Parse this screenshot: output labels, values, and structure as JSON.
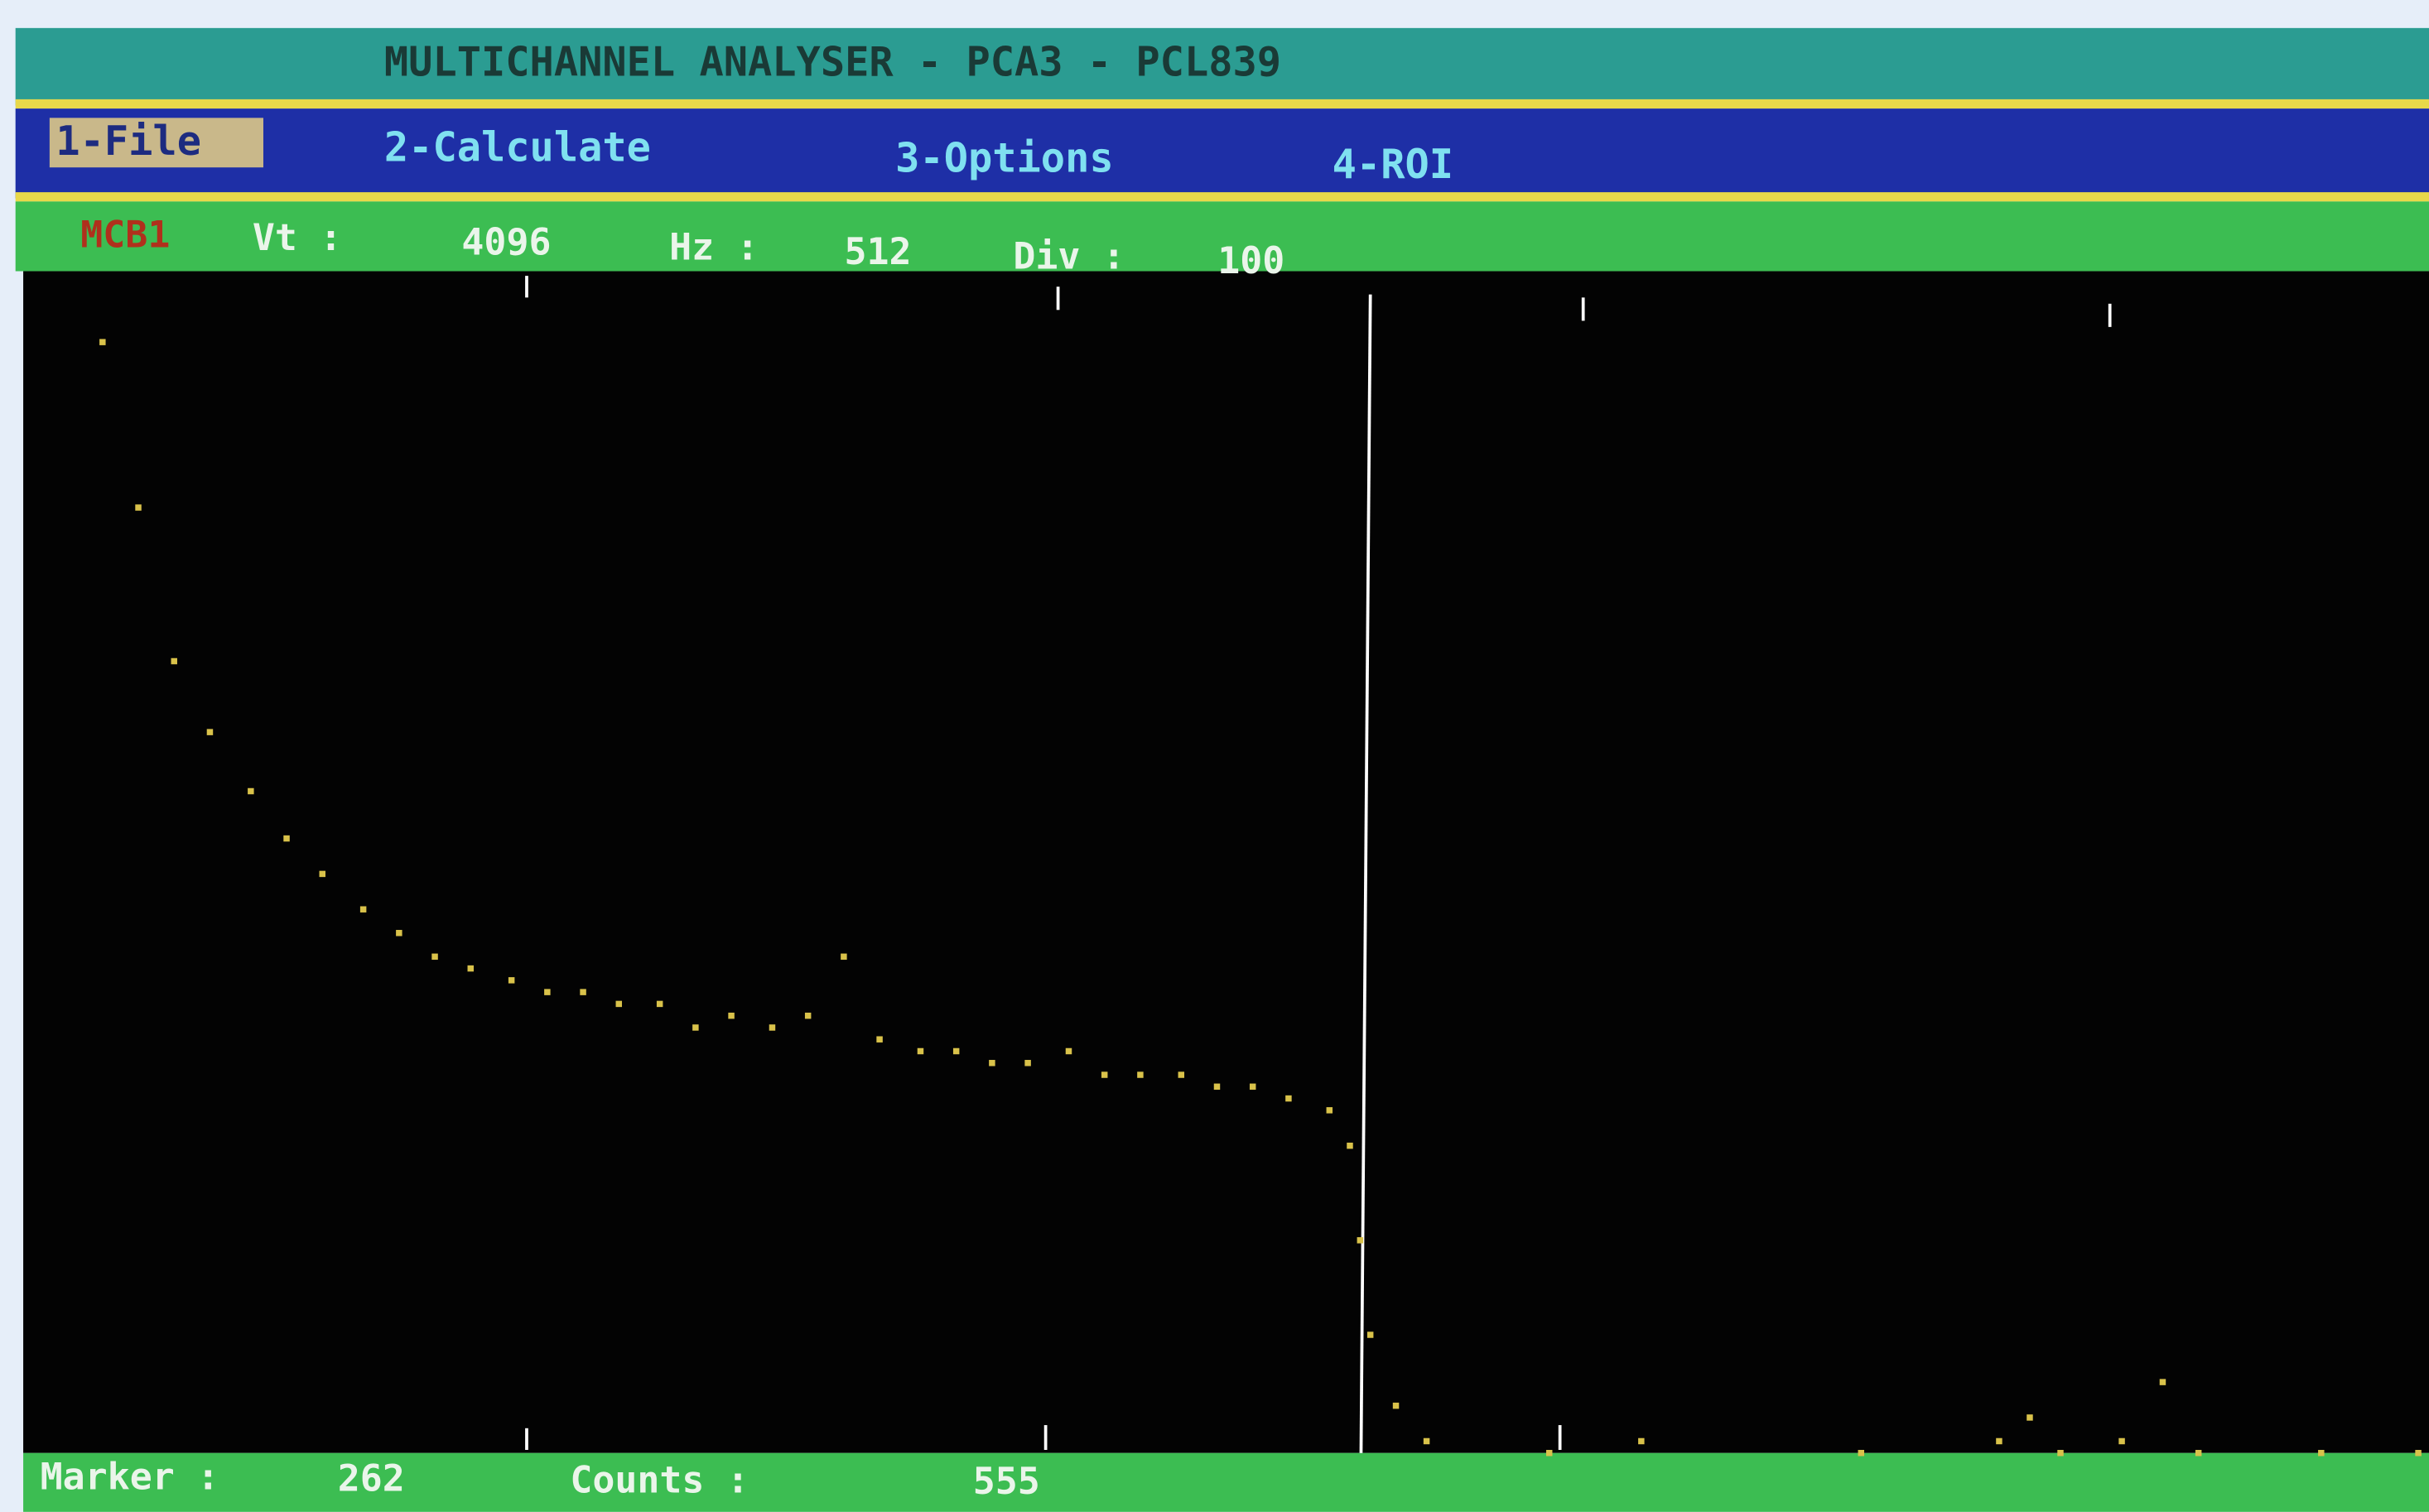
{
  "title": "MULTICHANNEL ANALYSER - PCA3 - PCL839",
  "menu": [
    "1-File",
    "2-Calculate",
    "3-Options",
    "4-ROI"
  ],
  "status": {
    "device": "MCB1",
    "vt_label": "Vt :",
    "vt": 4096,
    "hz_label": "Hz :",
    "hz": 512,
    "div_label": "Div :",
    "div": 100
  },
  "footer": {
    "marker_label": "Marker :",
    "marker": 262,
    "counts_label": "Counts :",
    "counts": 555
  },
  "spectrum": {
    "channels": [
      14,
      21,
      28,
      35,
      43,
      50,
      57,
      65,
      72,
      79,
      86,
      94,
      101,
      108,
      115,
      123,
      130,
      137,
      145,
      152,
      159,
      166,
      174,
      181,
      188,
      195,
      203,
      210,
      217,
      225,
      232,
      239,
      246,
      254,
      258,
      260,
      262,
      267,
      273,
      297,
      315,
      358,
      385,
      391,
      397,
      409,
      417,
      424,
      448,
      467
    ],
    "levels": [
      94,
      80,
      67,
      61,
      56,
      52,
      49,
      46,
      44,
      42,
      41,
      40,
      39,
      39,
      38,
      38,
      36,
      37,
      36,
      37,
      42,
      35,
      34,
      34,
      33,
      33,
      34,
      32,
      32,
      32,
      31,
      31,
      30,
      29,
      26,
      18,
      10,
      4,
      1,
      0,
      1,
      0,
      1,
      3,
      0,
      1,
      6,
      0,
      0,
      0
    ]
  }
}
